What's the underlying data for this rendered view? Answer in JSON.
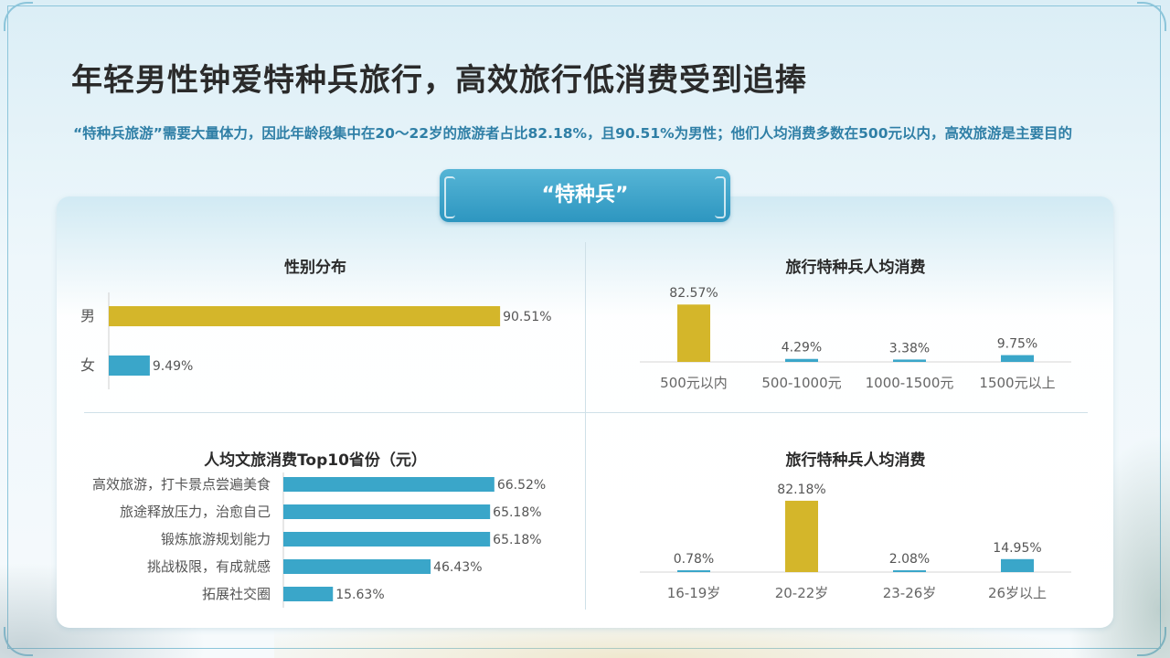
{
  "slide": {
    "title": "年轻男性钟爱特种兵旅行，高效旅行低消费受到追捧",
    "subtitle": "“特种兵旅游”需要大量体力，因此年龄段集中在20～22岁的旅游者占比82.18%，且90.51%为男性；他们人均消费多数在500元以内，高效旅游是主要目的",
    "banner": "“特种兵”"
  },
  "colors": {
    "gold": "#d4b62a",
    "blue": "#3aa6c9",
    "axis": "#d0d0d0",
    "text": "#555555"
  },
  "chart_data": [
    {
      "id": "gender",
      "type": "bar",
      "orientation": "horizontal",
      "title": "性别分布",
      "categories": [
        "男",
        "女"
      ],
      "values": [
        90.51,
        9.49
      ],
      "labels": [
        "90.51%",
        "9.49%"
      ],
      "colors": [
        "#d4b62a",
        "#3aa6c9"
      ],
      "xlim": [
        0,
        100
      ]
    },
    {
      "id": "spending",
      "type": "bar",
      "orientation": "vertical",
      "title": "旅行特种兵人均消费",
      "categories": [
        "500元以内",
        "500-1000元",
        "1000-1500元",
        "1500元以上"
      ],
      "values": [
        82.57,
        4.29,
        3.38,
        9.75
      ],
      "labels": [
        "82.57%",
        "4.29%",
        "3.38%",
        "9.75%"
      ],
      "colors": [
        "#d4b62a",
        "#3aa6c9",
        "#3aa6c9",
        "#3aa6c9"
      ],
      "ylim": [
        0,
        100
      ]
    },
    {
      "id": "purpose",
      "type": "bar",
      "orientation": "horizontal",
      "title": "人均文旅消费Top10省份（元）",
      "categories": [
        "高效旅游，打卡景点尝遍美食",
        "旅途释放压力，治愈自己",
        "锻炼旅游规划能力",
        "挑战极限，有成就感",
        "拓展社交圈"
      ],
      "values": [
        66.52,
        65.18,
        65.18,
        46.43,
        15.63
      ],
      "labels": [
        "66.52%",
        "65.18%",
        "65.18%",
        "46.43%",
        "15.63%"
      ],
      "colors": [
        "#3aa6c9",
        "#3aa6c9",
        "#3aa6c9",
        "#3aa6c9",
        "#3aa6c9"
      ],
      "xlim": [
        0,
        100
      ]
    },
    {
      "id": "age",
      "type": "bar",
      "orientation": "vertical",
      "title": "旅行特种兵人均消费",
      "categories": [
        "16-19岁",
        "20-22岁",
        "23-26岁",
        "26岁以上"
      ],
      "values": [
        0.78,
        82.18,
        2.08,
        14.95
      ],
      "labels": [
        "0.78%",
        "82.18%",
        "2.08%",
        "14.95%"
      ],
      "colors": [
        "#3aa6c9",
        "#d4b62a",
        "#3aa6c9",
        "#3aa6c9"
      ],
      "ylim": [
        0,
        100
      ]
    }
  ]
}
